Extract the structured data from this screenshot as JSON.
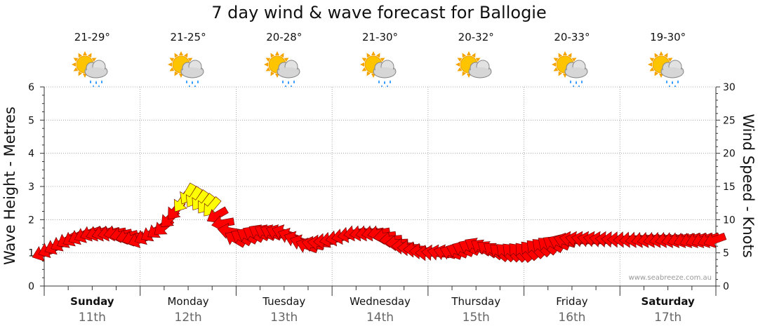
{
  "title": "7 day wind & wave forecast for Ballogie",
  "credit": "www.seabreeze.com.au",
  "days": [
    {
      "day": "Sunday",
      "date": "11th",
      "temp": "21-29°",
      "bold": true,
      "icon": "sun-cloud-rain-icon"
    },
    {
      "day": "Monday",
      "date": "12th",
      "temp": "21-25°",
      "bold": false,
      "icon": "sun-cloud-rain-icon"
    },
    {
      "day": "Tuesday",
      "date": "13th",
      "temp": "20-28°",
      "bold": false,
      "icon": "sun-cloud-rain-icon"
    },
    {
      "day": "Wednesday",
      "date": "14th",
      "temp": "21-30°",
      "bold": false,
      "icon": "sun-cloud-rain-icon"
    },
    {
      "day": "Thursday",
      "date": "15th",
      "temp": "20-32°",
      "bold": false,
      "icon": "sun-cloud-icon"
    },
    {
      "day": "Friday",
      "date": "16th",
      "temp": "20-33°",
      "bold": false,
      "icon": "sun-cloud-rain-icon"
    },
    {
      "day": "Saturday",
      "date": "17th",
      "temp": "19-30°",
      "bold": true,
      "icon": "sun-cloud-rain-icon"
    }
  ],
  "chart_data": {
    "type": "line",
    "title": "7 day wind & wave forecast for Ballogie",
    "ylabel": "Wave Height - Metres",
    "y2label": "Wind Speed - Knots",
    "ylim": [
      0,
      6
    ],
    "y2lim": [
      0,
      30
    ],
    "yticks": [
      0,
      1,
      2,
      3,
      4,
      5,
      6
    ],
    "y2ticks": [
      0,
      5,
      10,
      15,
      20,
      25,
      30
    ],
    "x_unit": "days from start of Sunday 11th",
    "grid": true,
    "colors": {
      "normal": "#ff0000",
      "strong": "#ffff00"
    },
    "series": [
      {
        "name": "Wind Speed - Knots",
        "x": [
          0.0,
          0.25,
          0.5,
          0.75,
          1.0,
          1.25,
          1.5,
          1.75,
          2.0,
          2.25,
          2.5,
          2.75,
          3.0,
          3.25,
          3.5,
          3.75,
          4.0,
          4.25,
          4.5,
          4.75,
          5.0,
          5.25,
          5.5,
          5.75,
          6.0,
          6.25,
          6.5,
          6.75,
          7.0
        ],
        "values": [
          5,
          7,
          8,
          8,
          7,
          9,
          14,
          12,
          7,
          8,
          8,
          6,
          7,
          8,
          8,
          6,
          5,
          5,
          6,
          5,
          5,
          6,
          7,
          7,
          7,
          7,
          7,
          7,
          7
        ],
        "direction_deg": [
          250,
          240,
          250,
          260,
          250,
          230,
          210,
          220,
          300,
          300,
          290,
          290,
          260,
          260,
          260,
          270,
          270,
          290,
          300,
          310,
          320,
          310,
          280,
          280,
          270,
          260,
          260,
          250,
          250
        ]
      }
    ]
  }
}
